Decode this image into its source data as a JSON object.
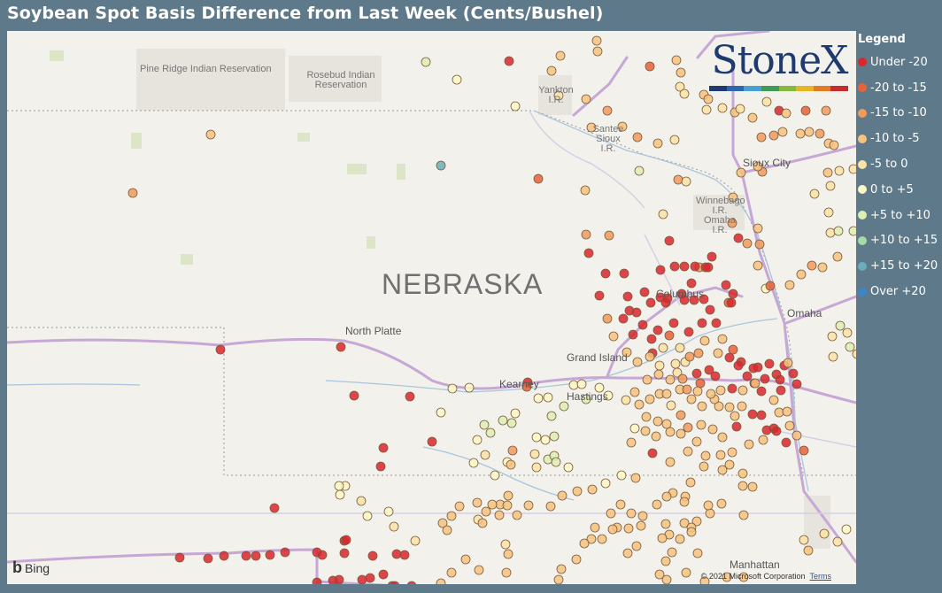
{
  "title": "Soybean Spot Basis Difference from Last Week (Cents/Bushel)",
  "legend": {
    "title": "Legend",
    "items": [
      {
        "label": "Under -20",
        "color": "#d9272e"
      },
      {
        "label": "-20 to -15",
        "color": "#e8623a"
      },
      {
        "label": "-15 to -10",
        "color": "#f09a5c"
      },
      {
        "label": "-10 to -5",
        "color": "#f6c27e"
      },
      {
        "label": "-5 to 0",
        "color": "#fae3a6"
      },
      {
        "label": "0 to +5",
        "color": "#fdf8c6"
      },
      {
        "label": "+5 to +10",
        "color": "#dcefb3"
      },
      {
        "label": "+10 to +15",
        "color": "#a8d8a6"
      },
      {
        "label": "+15 to +20",
        "color": "#69aebb"
      },
      {
        "label": "Over +20",
        "color": "#3a86c6"
      }
    ]
  },
  "logo": {
    "text": "StoneX"
  },
  "map": {
    "state_label": "NEBRASKA",
    "places": [
      {
        "id": "pine-ridge",
        "name": "Pine Ridge Indian Reservation"
      },
      {
        "id": "rosebud",
        "name": "Rosebud Indian Reservation"
      },
      {
        "id": "yankton",
        "name": "Yankton I.R."
      },
      {
        "id": "santee",
        "name": "Santee Sioux I.R."
      },
      {
        "id": "sioux-city",
        "name": "Sioux City"
      },
      {
        "id": "winnebago",
        "name": "Winnebago I.R. Omaha I.R."
      },
      {
        "id": "columbus",
        "name": "Columbus"
      },
      {
        "id": "omaha",
        "name": "Omaha"
      },
      {
        "id": "north-platte",
        "name": "North Platte"
      },
      {
        "id": "grand-island",
        "name": "Grand Island"
      },
      {
        "id": "kearney",
        "name": "Kearney"
      },
      {
        "id": "hastings",
        "name": "Hastings"
      },
      {
        "id": "manhattan",
        "name": "Manhattan"
      }
    ],
    "provider": "Bing",
    "copyright": "© 2021 Microsoft Corporation",
    "terms": "Terms"
  }
}
